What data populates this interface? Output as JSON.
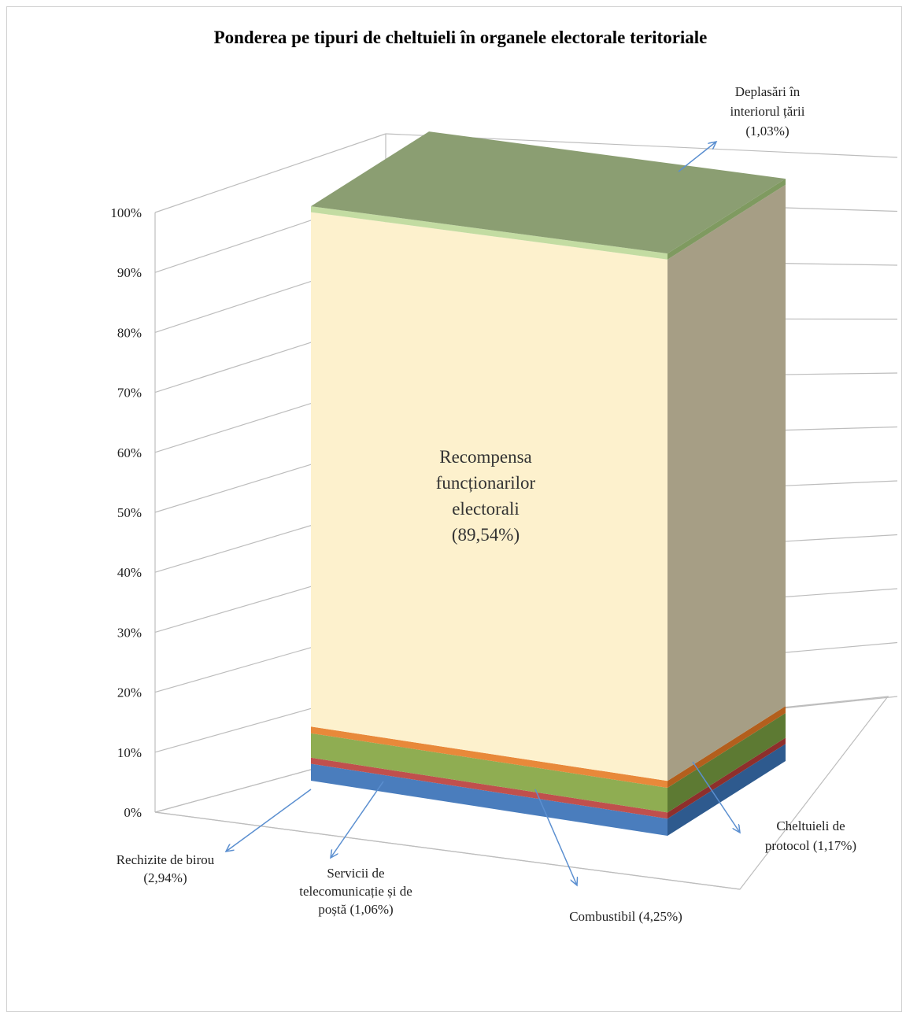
{
  "chart_data": {
    "type": "bar",
    "title": "Ponderea pe tipuri  de cheltuieli în organele electorale teritoriale",
    "y_ticks": [
      "0%",
      "10%",
      "20%",
      "30%",
      "40%",
      "50%",
      "60%",
      "70%",
      "80%",
      "90%",
      "100%"
    ],
    "ylim": [
      0,
      100
    ],
    "stacked": true,
    "grid": true,
    "series": [
      {
        "key": "rechizite",
        "value": 2.94,
        "color": "#4a7dbd",
        "side_color": "#2e5a8e",
        "label_lines": [
          "Rechizite  de birou",
          "(2,94%)"
        ]
      },
      {
        "key": "servicii",
        "value": 1.06,
        "color": "#c0504d",
        "side_color": "#8e2f2c",
        "label_lines": [
          "Servicii  de",
          "telecomunicație  și de",
          "poștă (1,06%)"
        ]
      },
      {
        "key": "combustibil",
        "value": 4.25,
        "color": "#8fad52",
        "side_color": "#5d7a33",
        "label_lines": [
          "Combustibil  (4,25%)"
        ]
      },
      {
        "key": "protocol",
        "value": 1.17,
        "color": "#e8893a",
        "side_color": "#b35f1d",
        "label_lines": [
          "Cheltuieli  de",
          "protocol (1,17%)"
        ]
      },
      {
        "key": "recompensa",
        "value": 89.54,
        "color": "#fdf1cd",
        "side_color": "#a69e85",
        "label_lines": [
          "Recompensa",
          "funcționarilor",
          "electorali",
          "(89,54%)"
        ]
      },
      {
        "key": "deplasari",
        "value": 1.03,
        "color": "#c3dca2",
        "side_color": "#7f9a60",
        "top_color": "#8b9e72",
        "label_lines": [
          "Deplasări în",
          "interiorul țării",
          "(1,03%)"
        ]
      }
    ]
  }
}
